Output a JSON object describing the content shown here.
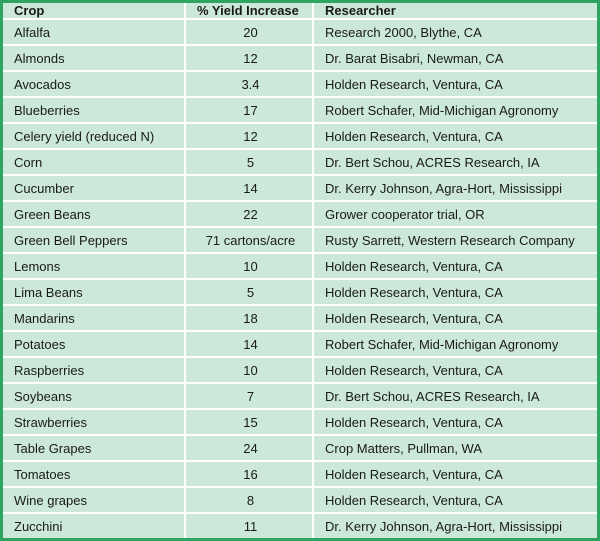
{
  "colors": {
    "border": "#2fa360",
    "background": "#cbe8d8",
    "grid": "#ffffff",
    "text": "#1a1a1a"
  },
  "chart_data": {
    "type": "table",
    "title": "",
    "columns": [
      "Crop",
      "% Yield Increase",
      "Researcher"
    ],
    "rows": [
      [
        "Alfalfa",
        "20",
        "Research 2000, Blythe, CA"
      ],
      [
        "Almonds",
        "12",
        "Dr. Barat Bisabri, Newman, CA"
      ],
      [
        "Avocados",
        "3.4",
        "Holden Research, Ventura, CA"
      ],
      [
        "Blueberries",
        "17",
        "Robert Schafer, Mid-Michigan Agronomy"
      ],
      [
        "Celery yield (reduced N)",
        "12",
        "Holden Research, Ventura, CA"
      ],
      [
        "Corn",
        "5",
        "Dr. Bert Schou, ACRES Research, IA"
      ],
      [
        "Cucumber",
        "14",
        "Dr. Kerry Johnson, Agra-Hort, Mississippi"
      ],
      [
        "Green Beans",
        "22",
        "Grower cooperator trial, OR"
      ],
      [
        "Green Bell Peppers",
        "71 cartons/acre",
        "Rusty Sarrett, Western Research Company"
      ],
      [
        "Lemons",
        "10",
        "Holden Research, Ventura, CA"
      ],
      [
        "Lima Beans",
        "5",
        "Holden Research, Ventura, CA"
      ],
      [
        "Mandarins",
        "18",
        "Holden Research, Ventura, CA"
      ],
      [
        "Potatoes",
        "14",
        "Robert Schafer, Mid-Michigan Agronomy"
      ],
      [
        "Raspberries",
        "10",
        "Holden Research, Ventura, CA"
      ],
      [
        "Soybeans",
        "7",
        "Dr. Bert Schou, ACRES Research, IA"
      ],
      [
        "Strawberries",
        "15",
        "Holden Research, Ventura, CA"
      ],
      [
        "Table Grapes",
        "24",
        "Crop Matters, Pullman, WA"
      ],
      [
        "Tomatoes",
        "16",
        "Holden Research, Ventura, CA"
      ],
      [
        "Wine grapes",
        "8",
        "Holden Research, Ventura, CA"
      ],
      [
        "Zucchini",
        "11",
        "Dr. Kerry Johnson, Agra-Hort, Mississippi"
      ]
    ]
  }
}
